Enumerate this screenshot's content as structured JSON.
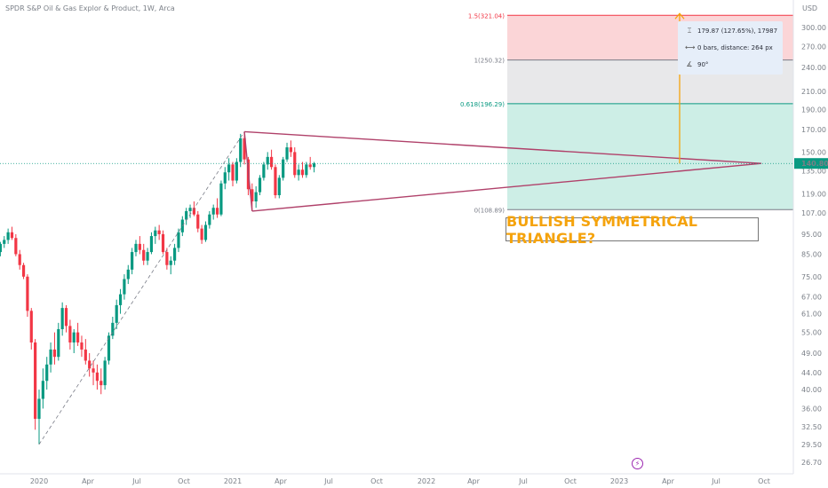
{
  "header": {
    "title": "SPDR S&P Oil & Gas Explor & Product, 1W, Arca"
  },
  "chart_data": {
    "type": "candlestick",
    "currency": "USD",
    "y_ticks": [
      "300.00",
      "270.00",
      "240.00",
      "210.00",
      "190.00",
      "170.00",
      "150.00",
      "135.00",
      "119.00",
      "107.00",
      "95.00",
      "85.00",
      "75.00",
      "67.00",
      "61.00",
      "55.00",
      "49.00",
      "44.00",
      "40.00",
      "36.00",
      "32.50",
      "29.50",
      "26.70"
    ],
    "x_ticks": [
      "2020",
      "Apr",
      "Jul",
      "Oct",
      "2021",
      "Apr",
      "Jul",
      "Oct",
      "2022",
      "Apr",
      "Jul",
      "Oct",
      "2023",
      "Apr",
      "Jul",
      "Oct"
    ],
    "last_price": "140.80",
    "fib_levels": [
      {
        "label": "1.5(321.04)",
        "value": 321.04,
        "color": "#f23645"
      },
      {
        "label": "1(250.32)",
        "value": 250.32,
        "color": "#787b86"
      },
      {
        "label": "0.618(196.29)",
        "value": 196.29,
        "color": "#089981"
      },
      {
        "label": "0(108.89)",
        "value": 108.89,
        "color": "#787b86"
      }
    ],
    "measure_info": {
      "range": "179.87 (127.65%), 17987",
      "bars": "0 bars, distance: 264 px",
      "angle": "90°"
    },
    "annotation": "BULLISH SYMMETRICAL TRIANGLE?",
    "colors": {
      "up": "#089981",
      "down": "#f23645",
      "triangle": "#b0416a",
      "target": "#f5a30c"
    },
    "weekly": [
      {
        "t": 0.0,
        "o": 90,
        "h": 95,
        "l": 86,
        "c": 89
      },
      {
        "t": 0.02,
        "o": 89,
        "h": 92,
        "l": 85,
        "c": 86
      },
      {
        "t": 0.04,
        "o": 86,
        "h": 91,
        "l": 84,
        "c": 90
      },
      {
        "t": 0.06,
        "o": 90,
        "h": 94,
        "l": 88,
        "c": 92
      },
      {
        "t": 0.08,
        "o": 92,
        "h": 98,
        "l": 90,
        "c": 96
      },
      {
        "t": 0.1,
        "o": 96,
        "h": 99,
        "l": 92,
        "c": 93
      },
      {
        "t": 0.12,
        "o": 93,
        "h": 95,
        "l": 84,
        "c": 85
      },
      {
        "t": 0.14,
        "o": 85,
        "h": 87,
        "l": 78,
        "c": 80
      },
      {
        "t": 0.16,
        "o": 80,
        "h": 81,
        "l": 74,
        "c": 75
      },
      {
        "t": 0.18,
        "o": 75,
        "h": 76,
        "l": 60,
        "c": 62
      },
      {
        "t": 0.2,
        "o": 62,
        "h": 63,
        "l": 50,
        "c": 52
      },
      {
        "t": 0.22,
        "o": 52,
        "h": 53,
        "l": 32,
        "c": 34
      },
      {
        "t": 0.24,
        "o": 34,
        "h": 40,
        "l": 29.5,
        "c": 38
      },
      {
        "t": 0.26,
        "o": 38,
        "h": 45,
        "l": 36,
        "c": 42
      },
      {
        "t": 0.28,
        "o": 42,
        "h": 48,
        "l": 40,
        "c": 46
      },
      {
        "t": 0.3,
        "o": 46,
        "h": 52,
        "l": 44,
        "c": 50
      },
      {
        "t": 0.32,
        "o": 50,
        "h": 55,
        "l": 46,
        "c": 48
      },
      {
        "t": 0.34,
        "o": 48,
        "h": 58,
        "l": 47,
        "c": 56
      },
      {
        "t": 0.36,
        "o": 56,
        "h": 65,
        "l": 54,
        "c": 63
      },
      {
        "t": 0.38,
        "o": 63,
        "h": 64,
        "l": 55,
        "c": 57
      },
      {
        "t": 0.4,
        "o": 57,
        "h": 59,
        "l": 50,
        "c": 52
      },
      {
        "t": 0.42,
        "o": 52,
        "h": 56,
        "l": 49,
        "c": 55
      },
      {
        "t": 0.44,
        "o": 55,
        "h": 58,
        "l": 51,
        "c": 52
      },
      {
        "t": 0.46,
        "o": 52,
        "h": 54,
        "l": 48,
        "c": 50
      },
      {
        "t": 0.48,
        "o": 50,
        "h": 53,
        "l": 46,
        "c": 47
      },
      {
        "t": 0.5,
        "o": 47,
        "h": 49,
        "l": 43,
        "c": 45
      },
      {
        "t": 0.52,
        "o": 45,
        "h": 47,
        "l": 41,
        "c": 44
      },
      {
        "t": 0.54,
        "o": 44,
        "h": 46,
        "l": 40,
        "c": 42
      },
      {
        "t": 0.56,
        "o": 42,
        "h": 45,
        "l": 39,
        "c": 41
      },
      {
        "t": 0.58,
        "o": 41,
        "h": 48,
        "l": 40,
        "c": 47
      },
      {
        "t": 0.6,
        "o": 47,
        "h": 55,
        "l": 46,
        "c": 54
      },
      {
        "t": 0.62,
        "o": 54,
        "h": 60,
        "l": 53,
        "c": 58
      },
      {
        "t": 0.64,
        "o": 58,
        "h": 66,
        "l": 56,
        "c": 64
      },
      {
        "t": 0.66,
        "o": 64,
        "h": 70,
        "l": 61,
        "c": 68
      },
      {
        "t": 0.68,
        "o": 68,
        "h": 76,
        "l": 66,
        "c": 74
      },
      {
        "t": 0.7,
        "o": 74,
        "h": 80,
        "l": 72,
        "c": 78
      },
      {
        "t": 0.72,
        "o": 78,
        "h": 88,
        "l": 76,
        "c": 86
      },
      {
        "t": 0.74,
        "o": 86,
        "h": 92,
        "l": 84,
        "c": 90
      },
      {
        "t": 0.76,
        "o": 90,
        "h": 94,
        "l": 85,
        "c": 87
      },
      {
        "t": 0.78,
        "o": 87,
        "h": 90,
        "l": 80,
        "c": 82
      },
      {
        "t": 0.8,
        "o": 82,
        "h": 88,
        "l": 80,
        "c": 86
      },
      {
        "t": 0.82,
        "o": 86,
        "h": 96,
        "l": 85,
        "c": 94
      },
      {
        "t": 0.84,
        "o": 94,
        "h": 99,
        "l": 90,
        "c": 97
      },
      {
        "t": 0.86,
        "o": 97,
        "h": 100,
        "l": 92,
        "c": 95
      },
      {
        "t": 0.88,
        "o": 95,
        "h": 97,
        "l": 85,
        "c": 86
      },
      {
        "t": 0.9,
        "o": 86,
        "h": 88,
        "l": 78,
        "c": 80
      },
      {
        "t": 0.92,
        "o": 80,
        "h": 84,
        "l": 76,
        "c": 82
      },
      {
        "t": 0.94,
        "o": 82,
        "h": 90,
        "l": 80,
        "c": 88
      },
      {
        "t": 0.96,
        "o": 88,
        "h": 98,
        "l": 86,
        "c": 96
      },
      {
        "t": 0.98,
        "o": 96,
        "h": 105,
        "l": 94,
        "c": 103
      },
      {
        "t": 1.0,
        "o": 103,
        "h": 110,
        "l": 100,
        "c": 108
      },
      {
        "t": 1.02,
        "o": 108,
        "h": 112,
        "l": 104,
        "c": 110
      },
      {
        "t": 1.04,
        "o": 110,
        "h": 114,
        "l": 105,
        "c": 106
      },
      {
        "t": 1.06,
        "o": 106,
        "h": 108,
        "l": 96,
        "c": 98
      },
      {
        "t": 1.08,
        "o": 98,
        "h": 100,
        "l": 90,
        "c": 92
      },
      {
        "t": 1.1,
        "o": 92,
        "h": 102,
        "l": 91,
        "c": 100
      },
      {
        "t": 1.12,
        "o": 100,
        "h": 108,
        "l": 98,
        "c": 106
      },
      {
        "t": 1.14,
        "o": 106,
        "h": 112,
        "l": 103,
        "c": 110
      },
      {
        "t": 1.16,
        "o": 110,
        "h": 116,
        "l": 104,
        "c": 106
      },
      {
        "t": 1.18,
        "o": 106,
        "h": 128,
        "l": 105,
        "c": 126
      },
      {
        "t": 1.2,
        "o": 126,
        "h": 138,
        "l": 122,
        "c": 134
      },
      {
        "t": 1.22,
        "o": 134,
        "h": 145,
        "l": 128,
        "c": 140
      },
      {
        "t": 1.24,
        "o": 140,
        "h": 142,
        "l": 124,
        "c": 128
      },
      {
        "t": 1.26,
        "o": 128,
        "h": 145,
        "l": 126,
        "c": 142
      },
      {
        "t": 1.28,
        "o": 142,
        "h": 166,
        "l": 138,
        "c": 162
      },
      {
        "t": 1.3,
        "o": 162,
        "h": 168,
        "l": 140,
        "c": 144
      },
      {
        "t": 1.32,
        "o": 144,
        "h": 146,
        "l": 118,
        "c": 122
      },
      {
        "t": 1.34,
        "o": 122,
        "h": 126,
        "l": 108,
        "c": 114
      },
      {
        "t": 1.36,
        "o": 114,
        "h": 124,
        "l": 110,
        "c": 120
      },
      {
        "t": 1.38,
        "o": 120,
        "h": 132,
        "l": 118,
        "c": 130
      },
      {
        "t": 1.4,
        "o": 130,
        "h": 142,
        "l": 128,
        "c": 140
      },
      {
        "t": 1.42,
        "o": 140,
        "h": 150,
        "l": 136,
        "c": 146
      },
      {
        "t": 1.44,
        "o": 146,
        "h": 152,
        "l": 136,
        "c": 138
      },
      {
        "t": 1.46,
        "o": 138,
        "h": 140,
        "l": 116,
        "c": 118
      },
      {
        "t": 1.48,
        "o": 118,
        "h": 132,
        "l": 116,
        "c": 130
      },
      {
        "t": 1.5,
        "o": 130,
        "h": 146,
        "l": 128,
        "c": 144
      },
      {
        "t": 1.52,
        "o": 144,
        "h": 158,
        "l": 142,
        "c": 154
      },
      {
        "t": 1.54,
        "o": 154,
        "h": 160,
        "l": 146,
        "c": 150
      },
      {
        "t": 1.56,
        "o": 150,
        "h": 154,
        "l": 130,
        "c": 132
      },
      {
        "t": 1.58,
        "o": 132,
        "h": 140,
        "l": 128,
        "c": 136
      },
      {
        "t": 1.6,
        "o": 136,
        "h": 142,
        "l": 130,
        "c": 132
      },
      {
        "t": 1.62,
        "o": 132,
        "h": 142,
        "l": 130,
        "c": 140
      },
      {
        "t": 1.64,
        "o": 140,
        "h": 146,
        "l": 136,
        "c": 138
      },
      {
        "t": 1.66,
        "o": 138,
        "h": 142,
        "l": 134,
        "c": 140.8
      }
    ]
  }
}
